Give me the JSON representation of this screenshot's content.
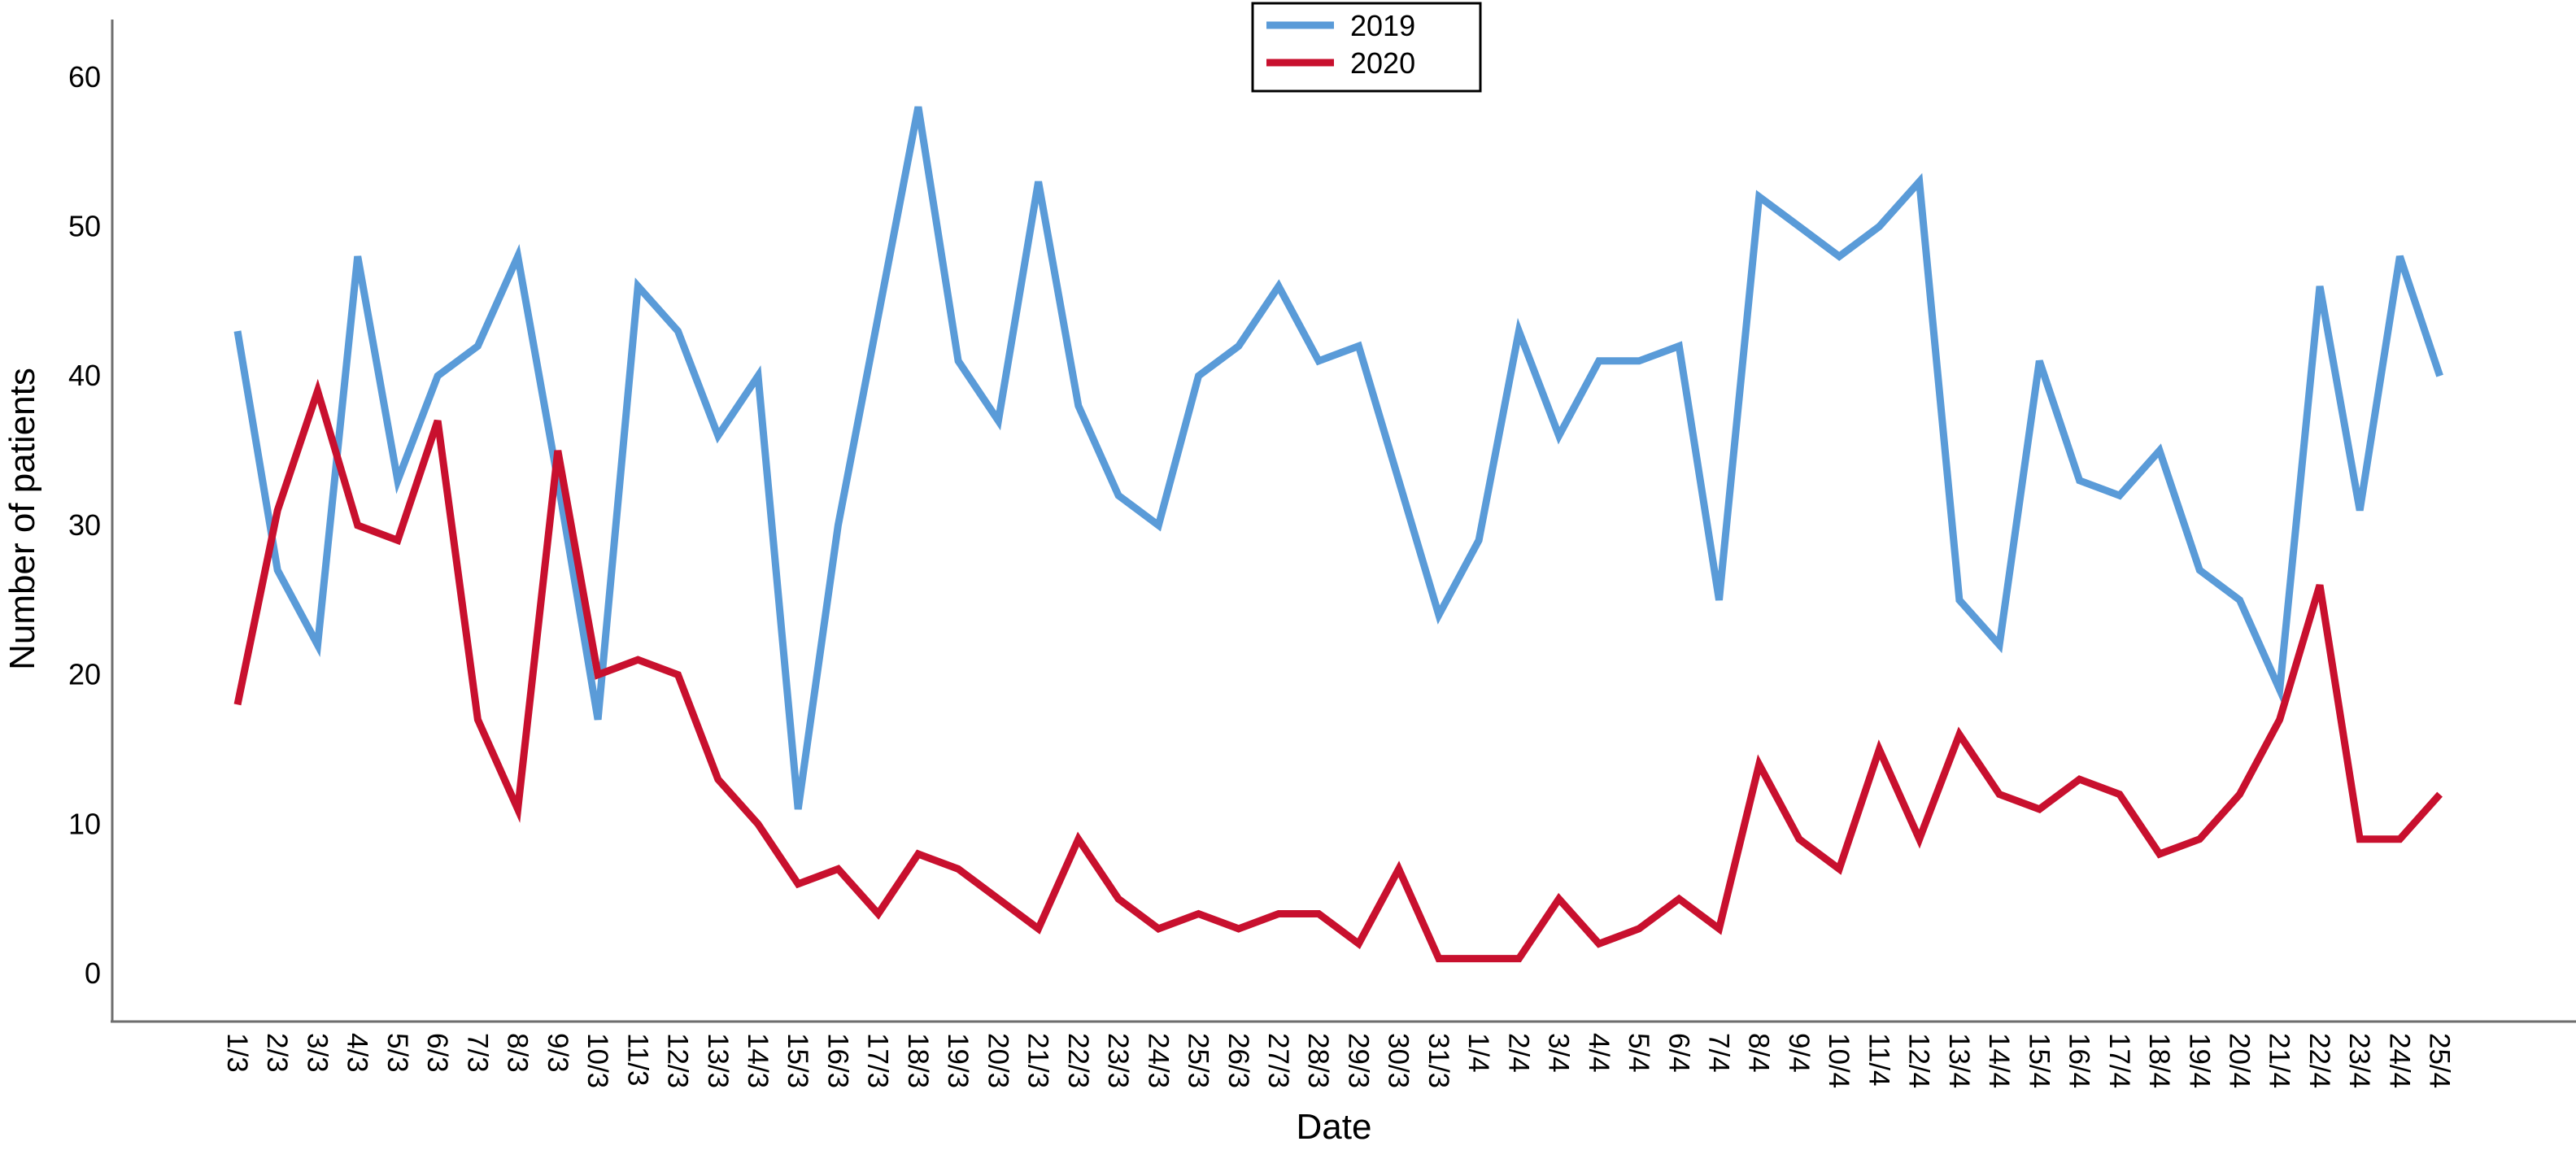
{
  "chart_data": {
    "type": "line",
    "xlabel": "Date",
    "ylabel": "Number of patients",
    "ylim": [
      0,
      60
    ],
    "yticks": [
      0,
      10,
      20,
      30,
      40,
      50,
      60
    ],
    "grid": false,
    "legend_position": "top-center",
    "categories": [
      "1/3",
      "2/3",
      "3/3",
      "4/3",
      "5/3",
      "6/3",
      "7/3",
      "8/3",
      "9/3",
      "10/3",
      "11/3",
      "12/3",
      "13/3",
      "14/3",
      "15/3",
      "16/3",
      "17/3",
      "18/3",
      "19/3",
      "20/3",
      "21/3",
      "22/3",
      "23/3",
      "24/3",
      "25/3",
      "26/3",
      "27/3",
      "28/3",
      "29/3",
      "30/3",
      "31/3",
      "1/4",
      "2/4",
      "3/4",
      "4/4",
      "5/4",
      "6/4",
      "7/4",
      "8/4",
      "9/4",
      "10/4",
      "11/4",
      "12/4",
      "13/4",
      "14/4",
      "15/4",
      "16/4",
      "17/4",
      "18/4",
      "19/4",
      "20/4",
      "21/4",
      "22/4",
      "23/4",
      "24/4",
      "25/4"
    ],
    "series": [
      {
        "name": "2019",
        "color": "#5a9bd8",
        "values": [
          43,
          27,
          22,
          48,
          33,
          40,
          42,
          48,
          33,
          17,
          46,
          43,
          36,
          40,
          11,
          30,
          44,
          58,
          41,
          37,
          53,
          38,
          32,
          30,
          40,
          42,
          46,
          41,
          42,
          33,
          24,
          29,
          43,
          36,
          41,
          41,
          42,
          25,
          52,
          50,
          48,
          50,
          53,
          25,
          22,
          41,
          33,
          32,
          35,
          27,
          25,
          19,
          46,
          31,
          48,
          40
        ]
      },
      {
        "name": "2020",
        "color": "#c8102e",
        "values": [
          18,
          31,
          39,
          30,
          29,
          37,
          17,
          11,
          35,
          20,
          21,
          20,
          13,
          10,
          6,
          7,
          4,
          8,
          7,
          5,
          3,
          9,
          5,
          3,
          4,
          3,
          4,
          4,
          2,
          7,
          1,
          1,
          1,
          5,
          2,
          3,
          5,
          3,
          14,
          9,
          7,
          15,
          9,
          16,
          12,
          11,
          13,
          12,
          8,
          9,
          12,
          17,
          26,
          9,
          9,
          12
        ]
      }
    ]
  }
}
